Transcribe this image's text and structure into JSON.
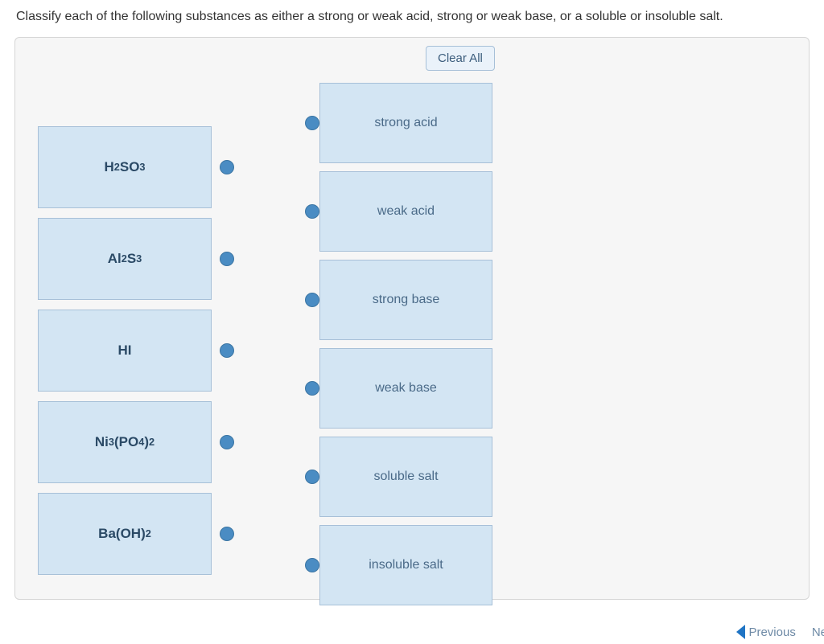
{
  "question": "Classify each of the following substances as either a strong or weak acid, strong or weak base, or a soluble or insoluble salt.",
  "buttons": {
    "clear_all": "Clear All"
  },
  "sources": [
    {
      "formula_html": "H<sub>2</sub>SO<sub>3</sub>"
    },
    {
      "formula_html": "Al<sub>2</sub>S<sub>3</sub>"
    },
    {
      "formula_html": "HI"
    },
    {
      "formula_html": "Ni<sub>3</sub>(PO<sub>4</sub>)<sub>2</sub>"
    },
    {
      "formula_html": "Ba(OH)<sub>2</sub>"
    }
  ],
  "targets": [
    {
      "label": "strong acid"
    },
    {
      "label": "weak acid"
    },
    {
      "label": "strong base"
    },
    {
      "label": "weak base"
    },
    {
      "label": "soluble salt"
    },
    {
      "label": "insoluble salt"
    }
  ],
  "nav": {
    "previous": "Previous",
    "next": "Ne"
  },
  "colors": {
    "item_bg": "#d3e5f3",
    "item_border": "#a7c0d8",
    "panel_bg": "#f6f6f6",
    "knob": "#4a8cc3",
    "text_dark": "#2b4a66",
    "text_light": "#4a6a88"
  }
}
